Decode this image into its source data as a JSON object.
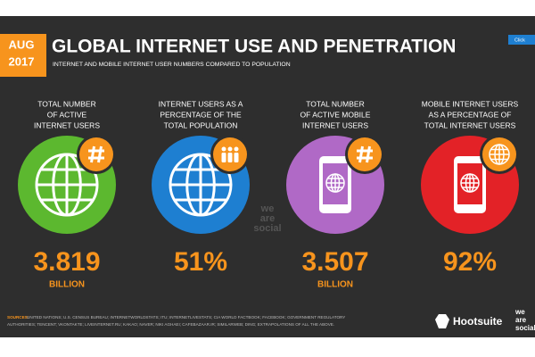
{
  "header": {
    "month": "AUG",
    "year": "2017",
    "title": "GLOBAL INTERNET USE AND PENETRATION",
    "subtitle": "INTERNET AND MOBILE INTERNET USER NUMBERS COMPARED TO POPULATION",
    "button": "Click"
  },
  "stats": [
    {
      "label": [
        "TOTAL NUMBER",
        "OF ACTIVE",
        "INTERNET USERS"
      ],
      "value": "3.819",
      "unit": "BILLION"
    },
    {
      "label": [
        "INTERNET USERS AS A",
        "PERCENTAGE OF THE",
        "TOTAL POPULATION"
      ],
      "value": "51%"
    },
    {
      "label": [
        "TOTAL NUMBER",
        "OF ACTIVE MOBILE",
        "INTERNET USERS"
      ],
      "value": "3.507",
      "unit": "BILLION"
    },
    {
      "label": [
        "MOBILE INTERNET USERS",
        "AS A PERCENTAGE OF",
        "TOTAL INTERNET USERS"
      ],
      "value": "92%"
    }
  ],
  "watermark": [
    "we",
    "are",
    "social"
  ],
  "sources": {
    "label": "SOURCES:",
    "lines": [
      "UNITED NATIONS; U.S. CENSUS BUREAU; INTERNETWORLDSTATS; ITU; INTERNETLIVESTATS; CIA WORLD FACTBOOK; FACEBOOK; GOVERNMENT REGULATORY",
      "AUTHORITIES; TENCENT; VKONTAKTE; LIVEINTERNET.RU; KAKAO; NAVER; NIKI AGHAEI; CAFEBAZAAR.IR; SIMILARWEB; DING; EXTRAPOLATIONS OF ALL THE ABOVE."
    ]
  },
  "footer": {
    "brand": "Hootsuite",
    "partner": [
      "we",
      "are",
      "social"
    ]
  }
}
